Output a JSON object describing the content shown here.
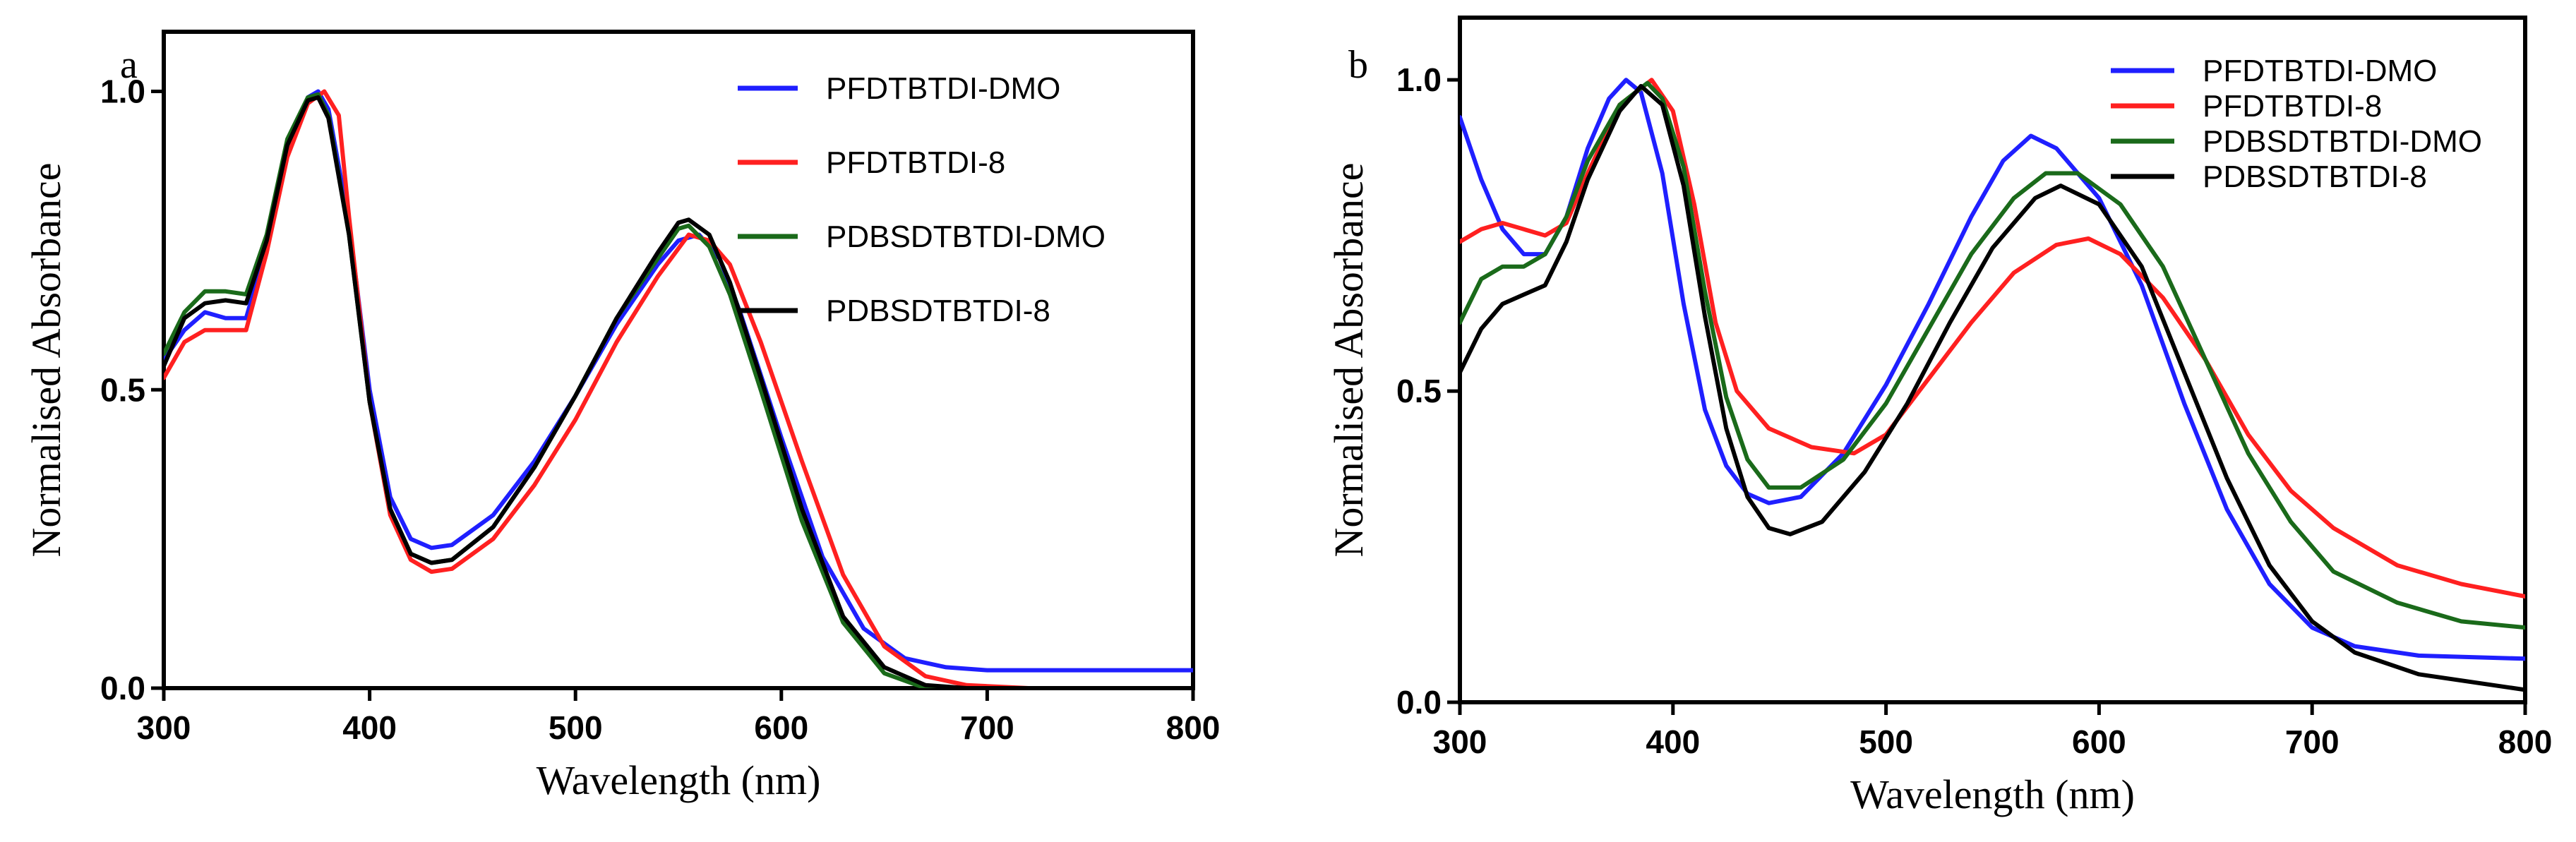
{
  "chart_data": [
    {
      "type": "line",
      "panel_label": "a",
      "xlabel": "Wavelength (nm)",
      "ylabel": "Normalised Absorbance",
      "xlim": [
        300,
        800
      ],
      "ylim": [
        0,
        1.1
      ],
      "x_ticks": [
        "300",
        "400",
        "500",
        "600",
        "700",
        "800"
      ],
      "y_ticks": [
        "0.0",
        "0.5",
        "1.0"
      ],
      "legend_position": "top-right",
      "series": [
        {
          "name": "PFDTBTDI-DMO",
          "color": "#1f1fff",
          "points": [
            [
              300,
              0.55
            ],
            [
              310,
              0.6
            ],
            [
              320,
              0.63
            ],
            [
              330,
              0.62
            ],
            [
              340,
              0.62
            ],
            [
              350,
              0.74
            ],
            [
              360,
              0.9
            ],
            [
              370,
              0.99
            ],
            [
              375,
              1.0
            ],
            [
              380,
              0.97
            ],
            [
              390,
              0.78
            ],
            [
              400,
              0.5
            ],
            [
              410,
              0.32
            ],
            [
              420,
              0.25
            ],
            [
              430,
              0.235
            ],
            [
              440,
              0.24
            ],
            [
              460,
              0.29
            ],
            [
              480,
              0.38
            ],
            [
              500,
              0.49
            ],
            [
              520,
              0.61
            ],
            [
              540,
              0.71
            ],
            [
              550,
              0.75
            ],
            [
              560,
              0.76
            ],
            [
              570,
              0.72
            ],
            [
              580,
              0.63
            ],
            [
              600,
              0.42
            ],
            [
              620,
              0.22
            ],
            [
              640,
              0.1
            ],
            [
              660,
              0.05
            ],
            [
              680,
              0.035
            ],
            [
              700,
              0.03
            ],
            [
              750,
              0.03
            ],
            [
              800,
              0.03
            ]
          ]
        },
        {
          "name": "PFDTBTDI-8",
          "color": "#ff2020",
          "points": [
            [
              300,
              0.52
            ],
            [
              310,
              0.58
            ],
            [
              320,
              0.6
            ],
            [
              330,
              0.6
            ],
            [
              340,
              0.6
            ],
            [
              350,
              0.73
            ],
            [
              360,
              0.89
            ],
            [
              370,
              0.98
            ],
            [
              378,
              1.0
            ],
            [
              385,
              0.96
            ],
            [
              390,
              0.79
            ],
            [
              400,
              0.48
            ],
            [
              410,
              0.29
            ],
            [
              420,
              0.215
            ],
            [
              430,
              0.195
            ],
            [
              440,
              0.2
            ],
            [
              460,
              0.25
            ],
            [
              480,
              0.34
            ],
            [
              500,
              0.45
            ],
            [
              520,
              0.58
            ],
            [
              540,
              0.69
            ],
            [
              555,
              0.76
            ],
            [
              565,
              0.75
            ],
            [
              575,
              0.71
            ],
            [
              590,
              0.58
            ],
            [
              610,
              0.38
            ],
            [
              630,
              0.19
            ],
            [
              650,
              0.07
            ],
            [
              670,
              0.02
            ],
            [
              690,
              0.005
            ],
            [
              720,
              0.0
            ],
            [
              800,
              0.0
            ]
          ]
        },
        {
          "name": "PDBSDTBTDI-DMO",
          "color": "#1a6a1a",
          "points": [
            [
              300,
              0.56
            ],
            [
              310,
              0.63
            ],
            [
              320,
              0.665
            ],
            [
              330,
              0.665
            ],
            [
              340,
              0.66
            ],
            [
              350,
              0.76
            ],
            [
              360,
              0.92
            ],
            [
              370,
              0.99
            ],
            [
              375,
              0.995
            ],
            [
              380,
              0.96
            ],
            [
              390,
              0.76
            ],
            [
              400,
              0.48
            ],
            [
              410,
              0.3
            ],
            [
              420,
              0.225
            ],
            [
              430,
              0.21
            ],
            [
              440,
              0.215
            ],
            [
              460,
              0.27
            ],
            [
              480,
              0.37
            ],
            [
              500,
              0.49
            ],
            [
              520,
              0.62
            ],
            [
              540,
              0.72
            ],
            [
              550,
              0.77
            ],
            [
              555,
              0.775
            ],
            [
              565,
              0.74
            ],
            [
              575,
              0.66
            ],
            [
              590,
              0.5
            ],
            [
              610,
              0.28
            ],
            [
              630,
              0.11
            ],
            [
              650,
              0.025
            ],
            [
              670,
              0.0
            ],
            [
              800,
              0.0
            ]
          ]
        },
        {
          "name": "PDBSDTBTDI-8",
          "color": "#000000",
          "points": [
            [
              300,
              0.54
            ],
            [
              310,
              0.62
            ],
            [
              320,
              0.645
            ],
            [
              330,
              0.65
            ],
            [
              340,
              0.645
            ],
            [
              350,
              0.75
            ],
            [
              360,
              0.91
            ],
            [
              370,
              0.985
            ],
            [
              375,
              0.99
            ],
            [
              380,
              0.955
            ],
            [
              390,
              0.76
            ],
            [
              400,
              0.48
            ],
            [
              410,
              0.3
            ],
            [
              420,
              0.225
            ],
            [
              430,
              0.21
            ],
            [
              440,
              0.215
            ],
            [
              460,
              0.27
            ],
            [
              480,
              0.37
            ],
            [
              500,
              0.49
            ],
            [
              520,
              0.62
            ],
            [
              540,
              0.73
            ],
            [
              550,
              0.78
            ],
            [
              555,
              0.785
            ],
            [
              565,
              0.76
            ],
            [
              575,
              0.68
            ],
            [
              590,
              0.52
            ],
            [
              610,
              0.3
            ],
            [
              630,
              0.12
            ],
            [
              650,
              0.035
            ],
            [
              670,
              0.005
            ],
            [
              690,
              0.0
            ],
            [
              800,
              0.0
            ]
          ]
        }
      ]
    },
    {
      "type": "line",
      "panel_label": "b",
      "xlabel": "Wavelength (nm)",
      "ylabel": "Normalised Absorbance",
      "xlim": [
        300,
        800
      ],
      "ylim": [
        0,
        1.1
      ],
      "x_ticks": [
        "300",
        "400",
        "500",
        "600",
        "700",
        "800"
      ],
      "y_ticks": [
        "0.0",
        "0.5",
        "1.0"
      ],
      "legend_position": "top-right",
      "series": [
        {
          "name": "PFDTBTDI-DMO",
          "color": "#1f1fff",
          "points": [
            [
              300,
              0.94
            ],
            [
              310,
              0.84
            ],
            [
              320,
              0.76
            ],
            [
              330,
              0.72
            ],
            [
              340,
              0.72
            ],
            [
              350,
              0.78
            ],
            [
              360,
              0.89
            ],
            [
              370,
              0.97
            ],
            [
              378,
              1.0
            ],
            [
              385,
              0.98
            ],
            [
              395,
              0.85
            ],
            [
              405,
              0.64
            ],
            [
              415,
              0.47
            ],
            [
              425,
              0.38
            ],
            [
              435,
              0.335
            ],
            [
              445,
              0.32
            ],
            [
              460,
              0.33
            ],
            [
              480,
              0.4
            ],
            [
              500,
              0.51
            ],
            [
              520,
              0.64
            ],
            [
              540,
              0.78
            ],
            [
              555,
              0.87
            ],
            [
              568,
              0.91
            ],
            [
              580,
              0.89
            ],
            [
              600,
              0.81
            ],
            [
              620,
              0.67
            ],
            [
              640,
              0.48
            ],
            [
              660,
              0.31
            ],
            [
              680,
              0.19
            ],
            [
              700,
              0.12
            ],
            [
              720,
              0.09
            ],
            [
              750,
              0.075
            ],
            [
              800,
              0.07
            ]
          ]
        },
        {
          "name": "PFDTBTDI-8",
          "color": "#ff2020",
          "points": [
            [
              300,
              0.74
            ],
            [
              310,
              0.76
            ],
            [
              320,
              0.77
            ],
            [
              330,
              0.76
            ],
            [
              340,
              0.75
            ],
            [
              350,
              0.77
            ],
            [
              360,
              0.85
            ],
            [
              375,
              0.96
            ],
            [
              390,
              1.0
            ],
            [
              400,
              0.95
            ],
            [
              410,
              0.8
            ],
            [
              420,
              0.61
            ],
            [
              430,
              0.5
            ],
            [
              445,
              0.44
            ],
            [
              465,
              0.41
            ],
            [
              485,
              0.4
            ],
            [
              500,
              0.43
            ],
            [
              520,
              0.52
            ],
            [
              540,
              0.61
            ],
            [
              560,
              0.69
            ],
            [
              580,
              0.735
            ],
            [
              595,
              0.745
            ],
            [
              610,
              0.72
            ],
            [
              630,
              0.65
            ],
            [
              650,
              0.55
            ],
            [
              670,
              0.43
            ],
            [
              690,
              0.34
            ],
            [
              710,
              0.28
            ],
            [
              740,
              0.22
            ],
            [
              770,
              0.19
            ],
            [
              800,
              0.17
            ]
          ]
        },
        {
          "name": "PDBSDTBTDI-DMO",
          "color": "#1a6a1a",
          "points": [
            [
              300,
              0.61
            ],
            [
              310,
              0.68
            ],
            [
              320,
              0.7
            ],
            [
              330,
              0.7
            ],
            [
              340,
              0.72
            ],
            [
              350,
              0.78
            ],
            [
              360,
              0.87
            ],
            [
              375,
              0.96
            ],
            [
              388,
              0.995
            ],
            [
              395,
              0.97
            ],
            [
              405,
              0.86
            ],
            [
              415,
              0.66
            ],
            [
              425,
              0.49
            ],
            [
              435,
              0.39
            ],
            [
              445,
              0.345
            ],
            [
              460,
              0.345
            ],
            [
              480,
              0.39
            ],
            [
              500,
              0.48
            ],
            [
              520,
              0.6
            ],
            [
              540,
              0.72
            ],
            [
              560,
              0.81
            ],
            [
              575,
              0.85
            ],
            [
              590,
              0.85
            ],
            [
              610,
              0.8
            ],
            [
              630,
              0.7
            ],
            [
              650,
              0.55
            ],
            [
              670,
              0.4
            ],
            [
              690,
              0.29
            ],
            [
              710,
              0.21
            ],
            [
              740,
              0.16
            ],
            [
              770,
              0.13
            ],
            [
              800,
              0.12
            ]
          ]
        },
        {
          "name": "PDBSDTBTDI-8",
          "color": "#000000",
          "points": [
            [
              300,
              0.53
            ],
            [
              310,
              0.6
            ],
            [
              320,
              0.64
            ],
            [
              330,
              0.655
            ],
            [
              340,
              0.67
            ],
            [
              350,
              0.74
            ],
            [
              360,
              0.84
            ],
            [
              375,
              0.95
            ],
            [
              385,
              0.99
            ],
            [
              395,
              0.96
            ],
            [
              405,
              0.83
            ],
            [
              415,
              0.62
            ],
            [
              425,
              0.44
            ],
            [
              435,
              0.33
            ],
            [
              445,
              0.28
            ],
            [
              455,
              0.27
            ],
            [
              470,
              0.29
            ],
            [
              490,
              0.37
            ],
            [
              510,
              0.48
            ],
            [
              530,
              0.61
            ],
            [
              550,
              0.73
            ],
            [
              570,
              0.81
            ],
            [
              582,
              0.83
            ],
            [
              600,
              0.8
            ],
            [
              620,
              0.7
            ],
            [
              640,
              0.53
            ],
            [
              660,
              0.36
            ],
            [
              680,
              0.22
            ],
            [
              700,
              0.13
            ],
            [
              720,
              0.08
            ],
            [
              750,
              0.045
            ],
            [
              800,
              0.02
            ]
          ]
        }
      ]
    }
  ]
}
